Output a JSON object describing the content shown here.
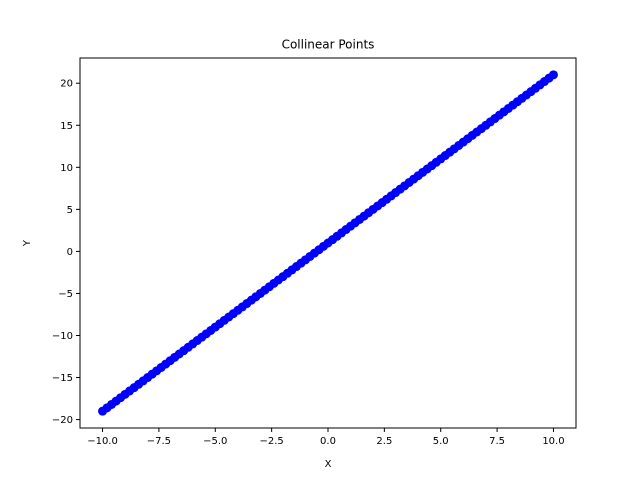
{
  "chart_data": {
    "type": "scatter",
    "title": "Collinear Points",
    "xlabel": "X",
    "ylabel": "Y",
    "xlim": [
      -11,
      11
    ],
    "ylim": [
      -21,
      23
    ],
    "grid": false,
    "xticks": [
      -10,
      -7.5,
      -5,
      -2.5,
      0,
      2.5,
      5,
      7.5,
      10
    ],
    "xtick_labels": [
      "−10.0",
      "−7.5",
      "−5.0",
      "−2.5",
      "0.0",
      "2.5",
      "5.0",
      "7.5",
      "10.0"
    ],
    "yticks": [
      -20,
      -15,
      -10,
      -5,
      0,
      5,
      10,
      15,
      20
    ],
    "ytick_labels": [
      "−20",
      "−15",
      "−10",
      "−5",
      "0",
      "5",
      "10",
      "15",
      "20"
    ],
    "series": [
      {
        "color": "#0000ff",
        "x": [
          -10.0,
          -9.8,
          -9.6,
          -9.4,
          -9.2,
          -9.0,
          -8.8,
          -8.6,
          -8.4,
          -8.2,
          -8.0,
          -7.8,
          -7.6,
          -7.4,
          -7.2,
          -7.0,
          -6.8,
          -6.6,
          -6.4,
          -6.2,
          -6.0,
          -5.8,
          -5.6,
          -5.4,
          -5.2,
          -5.0,
          -4.8,
          -4.6,
          -4.4,
          -4.2,
          -4.0,
          -3.8,
          -3.6,
          -3.4,
          -3.2,
          -3.0,
          -2.8,
          -2.6,
          -2.4,
          -2.2,
          -2.0,
          -1.8,
          -1.6,
          -1.4,
          -1.2,
          -1.0,
          -0.8,
          -0.6,
          -0.4,
          -0.2,
          0.0,
          0.2,
          0.4,
          0.6,
          0.8,
          1.0,
          1.2,
          1.4,
          1.6,
          1.8,
          2.0,
          2.2,
          2.4,
          2.6,
          2.8,
          3.0,
          3.2,
          3.4,
          3.6,
          3.8,
          4.0,
          4.2,
          4.4,
          4.6,
          4.8,
          5.0,
          5.2,
          5.4,
          5.6,
          5.8,
          6.0,
          6.2,
          6.4,
          6.6,
          6.8,
          7.0,
          7.2,
          7.4,
          7.6,
          7.8,
          8.0,
          8.2,
          8.4,
          8.6,
          8.8,
          9.0,
          9.2,
          9.4,
          9.6,
          9.8,
          10.0
        ],
        "y": [
          -19.0,
          -18.6,
          -18.2,
          -17.8,
          -17.4,
          -17.0,
          -16.6,
          -16.2,
          -15.8,
          -15.4,
          -15.0,
          -14.6,
          -14.2,
          -13.8,
          -13.4,
          -13.0,
          -12.6,
          -12.2,
          -11.8,
          -11.4,
          -11.0,
          -10.6,
          -10.2,
          -9.8,
          -9.4,
          -9.0,
          -8.6,
          -8.2,
          -7.8,
          -7.4,
          -7.0,
          -6.6,
          -6.2,
          -5.8,
          -5.4,
          -5.0,
          -4.6,
          -4.2,
          -3.8,
          -3.4,
          -3.0,
          -2.6,
          -2.2,
          -1.8,
          -1.4,
          -1.0,
          -0.6,
          -0.2,
          0.2,
          0.6,
          1.0,
          1.4,
          1.8,
          2.2,
          2.6,
          3.0,
          3.4,
          3.8,
          4.2,
          4.6,
          5.0,
          5.4,
          5.8,
          6.2,
          6.6,
          7.0,
          7.4,
          7.8,
          8.2,
          8.6,
          9.0,
          9.4,
          9.8,
          10.2,
          10.6,
          11.0,
          11.4,
          11.8,
          12.2,
          12.6,
          13.0,
          13.4,
          13.8,
          14.2,
          14.6,
          15.0,
          15.4,
          15.8,
          16.2,
          16.6,
          17.0,
          17.4,
          17.8,
          18.2,
          18.6,
          19.0,
          19.4,
          19.8,
          20.2,
          20.6,
          21.0
        ]
      }
    ]
  }
}
